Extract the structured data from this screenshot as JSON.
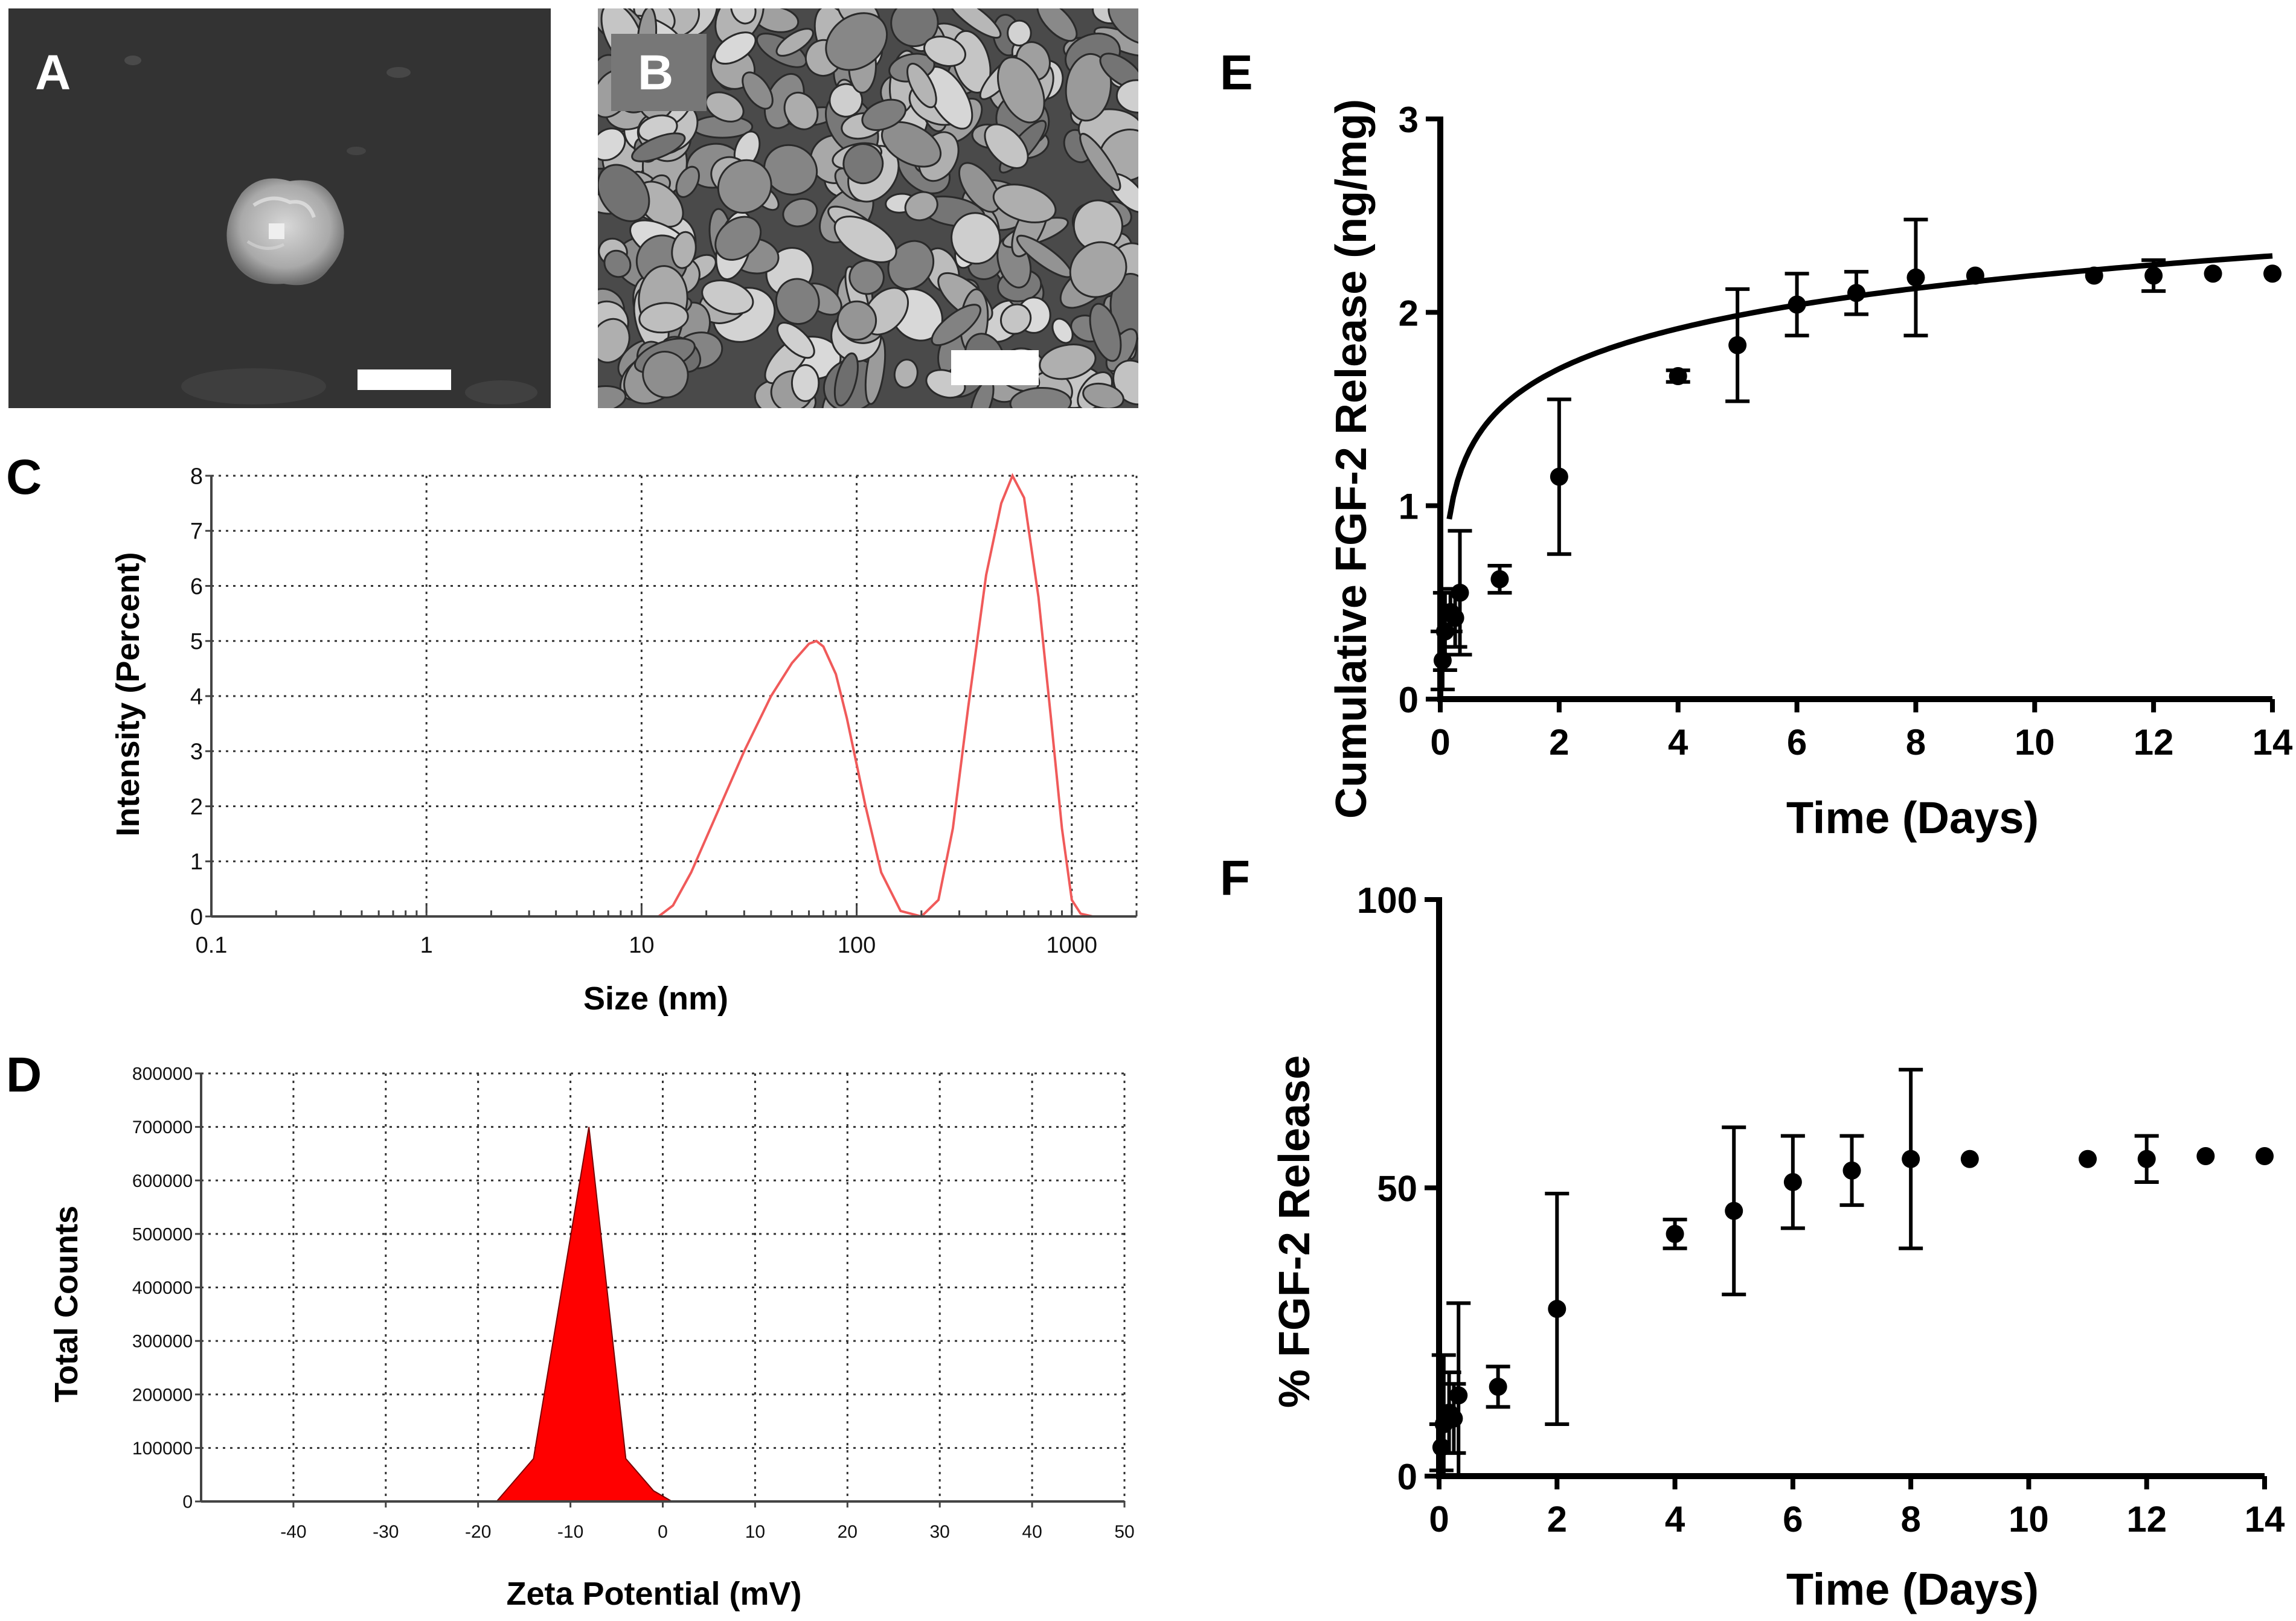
{
  "panel_labels": {
    "a": "A",
    "b": "B",
    "c": "C",
    "d": "D",
    "e": "E",
    "f": "F"
  },
  "colors": {
    "dls_curve": "#f05a5a",
    "zeta_fill": "#ff0000",
    "prism": "#000000",
    "sem_bg": "#2f2f2f"
  },
  "chart_data": [
    {
      "panel": "C",
      "type": "line",
      "xscale": "log",
      "xlabel": "Size (nm)",
      "ylabel": "Intensity  (Percent)",
      "xlim": [
        0.1,
        2000
      ],
      "ylim": [
        0,
        8
      ],
      "grid": true,
      "xticks": [
        0.1,
        1,
        10,
        100,
        1000
      ],
      "xtick_labels": [
        "0.1",
        "1",
        "10",
        "100",
        "1000"
      ],
      "yticks": [
        0,
        1,
        2,
        3,
        4,
        5,
        6,
        7,
        8
      ],
      "ytick_labels": [
        "0",
        "1",
        "2",
        "3",
        "4",
        "5",
        "6",
        "7",
        "8"
      ],
      "x": [
        1,
        10,
        12,
        14,
        17,
        22,
        30,
        40,
        50,
        60,
        65,
        70,
        80,
        90,
        110,
        130,
        160,
        200,
        240,
        280,
        330,
        400,
        470,
        530,
        600,
        700,
        800,
        900,
        1000,
        1100,
        1250,
        1500,
        2000
      ],
      "y": [
        0,
        0,
        0,
        0.2,
        0.8,
        1.8,
        3.0,
        4.0,
        4.6,
        4.95,
        5.0,
        4.9,
        4.4,
        3.6,
        2.0,
        0.8,
        0.1,
        0,
        0.3,
        1.6,
        3.8,
        6.2,
        7.5,
        8.0,
        7.6,
        5.8,
        3.6,
        1.6,
        0.3,
        0.05,
        0,
        0,
        0
      ]
    },
    {
      "panel": "D",
      "type": "area",
      "xlabel": "Zeta Potential (mV)",
      "ylabel": "Total  Counts",
      "xlim": [
        -50,
        50
      ],
      "ylim": [
        0,
        800000
      ],
      "grid": true,
      "xticks": [
        -40,
        -30,
        -20,
        -10,
        0,
        10,
        20,
        30,
        40,
        50
      ],
      "xtick_labels": [
        "-40",
        "-30",
        "-20",
        "-10",
        "0",
        "10",
        "20",
        "30",
        "40",
        "50"
      ],
      "yticks": [
        0,
        100000,
        200000,
        300000,
        400000,
        500000,
        600000,
        700000,
        800000
      ],
      "ytick_labels": [
        "0",
        "100000",
        "200000",
        "300000",
        "400000",
        "500000",
        "600000",
        "700000",
        "800000"
      ],
      "x": [
        -18,
        -14,
        -8,
        -4,
        -1,
        1
      ],
      "y": [
        0,
        80000,
        700000,
        80000,
        20000,
        0
      ]
    },
    {
      "panel": "E",
      "type": "scatter",
      "xlabel": "Time (Days)",
      "ylabel": "Cumulative FGF-2 Release (ng/mg)",
      "xlim": [
        0,
        14
      ],
      "ylim": [
        0,
        3
      ],
      "xticks": [
        0,
        2,
        4,
        6,
        8,
        10,
        12,
        14
      ],
      "xtick_labels": [
        "0",
        "2",
        "4",
        "6",
        "8",
        "10",
        "12",
        "14"
      ],
      "yticks": [
        0,
        1,
        2,
        3
      ],
      "ytick_labels": [
        "0",
        "1",
        "2",
        "3"
      ],
      "x": [
        0.04,
        0.08,
        0.17,
        0.25,
        0.33,
        1,
        2,
        4,
        5,
        6,
        7,
        8,
        9,
        11,
        12,
        13,
        14
      ],
      "y": [
        0.2,
        0.35,
        0.45,
        0.42,
        0.55,
        0.62,
        1.15,
        1.67,
        1.83,
        2.04,
        2.1,
        2.18,
        2.19,
        2.19,
        2.19,
        2.2,
        2.2
      ],
      "err": [
        0.15,
        0.2,
        0.1,
        0.15,
        0.32,
        0.07,
        0.4,
        0.03,
        0.29,
        0.16,
        0.11,
        0.3,
        0,
        0,
        0.08,
        0,
        0
      ],
      "fit": {
        "type": "logarithmic",
        "x_start": 0.15,
        "x_end": 14,
        "a": 1.5,
        "b": 0.3
      }
    },
    {
      "panel": "F",
      "type": "scatter",
      "xlabel": "Time (Days)",
      "ylabel": "% FGF-2 Release",
      "xlim": [
        0,
        14
      ],
      "ylim": [
        0,
        100
      ],
      "xticks": [
        0,
        2,
        4,
        6,
        8,
        10,
        12,
        14
      ],
      "xtick_labels": [
        "0",
        "2",
        "4",
        "6",
        "8",
        "10",
        "12",
        "14"
      ],
      "yticks": [
        0,
        50,
        100
      ],
      "ytick_labels": [
        "0",
        "50",
        "100"
      ],
      "x": [
        0.04,
        0.08,
        0.17,
        0.25,
        0.33,
        1,
        2,
        4,
        5,
        6,
        7,
        8,
        9,
        11,
        12,
        13,
        14
      ],
      "y": [
        5,
        9,
        11,
        10,
        14,
        15.5,
        29,
        42,
        46,
        51,
        53,
        55,
        55,
        55,
        55,
        55.5,
        55.5
      ],
      "err": [
        4,
        12,
        7,
        6,
        16,
        3.5,
        20,
        2.5,
        14.5,
        8,
        6,
        15.5,
        0,
        0,
        4,
        0,
        0
      ]
    }
  ]
}
